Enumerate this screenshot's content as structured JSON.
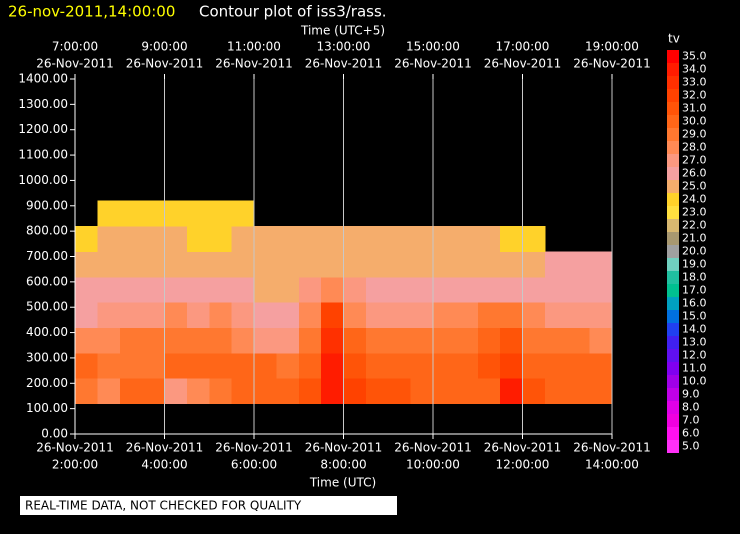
{
  "chart_data": {
    "type": "contour",
    "title": "26-nov-2011,14:00:00",
    "subtitle": "Contour plot of iss3/rass.",
    "x2label": "Time (UTC+5)",
    "xlabel": "Time (UTC)",
    "note": "REAL-TIME DATA, NOT CHECKED FOR QUALITY",
    "xlim": [
      2,
      14
    ],
    "ylim": [
      0,
      1400
    ],
    "grid": true,
    "xticks": [
      {
        "value": 2,
        "date": "26-Nov-2011",
        "time": "2:00:00"
      },
      {
        "value": 4,
        "date": "26-Nov-2011",
        "time": "4:00:00"
      },
      {
        "value": 6,
        "date": "26-Nov-2011",
        "time": "6:00:00"
      },
      {
        "value": 8,
        "date": "26-Nov-2011",
        "time": "8:00:00"
      },
      {
        "value": 10,
        "date": "26-Nov-2011",
        "time": "10:00:00"
      },
      {
        "value": 12,
        "date": "26-Nov-2011",
        "time": "12:00:00"
      },
      {
        "value": 14,
        "date": "26-Nov-2011",
        "time": "14:00:00"
      }
    ],
    "x2ticks": [
      {
        "value": 2,
        "time": "7:00:00",
        "date": "26-Nov-2011"
      },
      {
        "value": 4,
        "time": "9:00:00",
        "date": "26-Nov-2011"
      },
      {
        "value": 6,
        "time": "11:00:00",
        "date": "26-Nov-2011"
      },
      {
        "value": 8,
        "time": "13:00:00",
        "date": "26-Nov-2011"
      },
      {
        "value": 10,
        "time": "15:00:00",
        "date": "26-Nov-2011"
      },
      {
        "value": 12,
        "time": "17:00:00",
        "date": "26-Nov-2011"
      },
      {
        "value": 14,
        "time": "19:00:00",
        "date": "26-Nov-2011"
      }
    ],
    "yticks": [
      {
        "value": 0,
        "label": "0.00"
      },
      {
        "value": 100,
        "label": "100.00"
      },
      {
        "value": 200,
        "label": "200.00"
      },
      {
        "value": 300,
        "label": "300.00"
      },
      {
        "value": 400,
        "label": "400.00"
      },
      {
        "value": 500,
        "label": "500.00"
      },
      {
        "value": 600,
        "label": "600.00"
      },
      {
        "value": 700,
        "label": "700.00"
      },
      {
        "value": 800,
        "label": "800.00"
      },
      {
        "value": 900,
        "label": "900.00"
      },
      {
        "value": 1000,
        "label": "1000.00"
      },
      {
        "value": 1100,
        "label": "1100.00"
      },
      {
        "value": 1200,
        "label": "1200.00"
      },
      {
        "value": 1300,
        "label": "1300.00"
      },
      {
        "value": 1400,
        "label": "1400.00"
      }
    ],
    "x": [
      2.25,
      2.75,
      3.25,
      3.75,
      4.25,
      4.75,
      5.25,
      5.75,
      6.25,
      6.75,
      7.25,
      7.75,
      8.25,
      8.75,
      9.25,
      9.75,
      10.25,
      10.75,
      11.25,
      11.75,
      12.25,
      12.75,
      13.25,
      13.75
    ],
    "y": [
      170,
      270,
      370,
      470,
      570,
      670,
      770,
      870
    ],
    "values": [
      [
        29,
        28,
        30,
        30,
        27,
        28,
        29,
        30,
        30,
        30,
        31,
        34,
        32,
        31,
        31,
        30,
        30,
        30,
        30,
        34,
        31,
        30,
        30,
        30
      ],
      [
        30,
        29,
        29,
        29,
        30,
        30,
        30,
        30,
        30,
        29,
        30,
        34,
        31,
        30,
        30,
        30,
        30,
        30,
        31,
        32,
        30,
        30,
        30,
        30
      ],
      [
        28,
        28,
        29,
        29,
        29,
        29,
        29,
        28,
        27,
        27,
        29,
        33,
        30,
        29,
        29,
        29,
        29,
        29,
        30,
        31,
        29,
        29,
        29,
        28
      ],
      [
        26,
        27,
        27,
        27,
        28,
        27,
        28,
        27,
        26,
        26,
        28,
        32,
        28,
        27,
        27,
        27,
        28,
        28,
        29,
        29,
        28,
        27,
        27,
        27
      ],
      [
        26,
        26,
        26,
        26,
        26,
        26,
        26,
        26,
        25,
        25,
        27,
        28,
        27,
        26,
        26,
        26,
        26,
        26,
        26,
        26,
        26,
        26,
        26,
        26
      ],
      [
        25,
        25,
        25,
        25,
        25,
        25,
        25,
        25,
        25,
        25,
        25,
        25,
        25,
        25,
        25,
        25,
        25,
        25,
        25,
        25,
        25,
        26,
        26,
        26
      ],
      [
        24,
        25,
        25,
        25,
        25,
        24,
        24,
        25,
        25,
        25,
        25,
        25,
        25,
        25,
        25,
        25,
        25,
        25,
        25,
        24,
        24,
        null,
        null,
        null
      ],
      [
        null,
        24,
        24,
        24,
        24,
        24,
        24,
        24,
        null,
        null,
        null,
        null,
        null,
        null,
        null,
        null,
        null,
        null,
        null,
        null,
        null,
        null,
        null,
        null
      ]
    ],
    "colorbar": {
      "title": "tv",
      "levels": [
        {
          "value": 35,
          "label": "35.0"
        },
        {
          "value": 34,
          "label": "34.0"
        },
        {
          "value": 33,
          "label": "33.0"
        },
        {
          "value": 32,
          "label": "32.0"
        },
        {
          "value": 31,
          "label": "31.0"
        },
        {
          "value": 30,
          "label": "30.0"
        },
        {
          "value": 29,
          "label": "29.0"
        },
        {
          "value": 28,
          "label": "28.0"
        },
        {
          "value": 27,
          "label": "27.0"
        },
        {
          "value": 26,
          "label": "26.0"
        },
        {
          "value": 25,
          "label": "25.0"
        },
        {
          "value": 24,
          "label": "24.0"
        },
        {
          "value": 23,
          "label": "23.0"
        },
        {
          "value": 22,
          "label": "22.0"
        },
        {
          "value": 21,
          "label": "21.0"
        },
        {
          "value": 20,
          "label": "20.0"
        },
        {
          "value": 19,
          "label": "19.0"
        },
        {
          "value": 18,
          "label": "18.0"
        },
        {
          "value": 17,
          "label": "17.0"
        },
        {
          "value": 16,
          "label": "16.0"
        },
        {
          "value": 15,
          "label": "15.0"
        },
        {
          "value": 14,
          "label": "14.0"
        },
        {
          "value": 13,
          "label": "13.0"
        },
        {
          "value": 12,
          "label": "12.0"
        },
        {
          "value": 11,
          "label": "11.0"
        },
        {
          "value": 10,
          "label": "10.0"
        },
        {
          "value": 9,
          "label": "9.0"
        },
        {
          "value": 8,
          "label": "8.0"
        },
        {
          "value": 7,
          "label": "7.0"
        },
        {
          "value": 6,
          "label": "6.0"
        },
        {
          "value": 5,
          "label": "5.0"
        }
      ],
      "colors": [
        "#ff0000",
        "#ff1c00",
        "#ff3000",
        "#ff4200",
        "#ff5408",
        "#ff6618",
        "#ff7830",
        "#ff8a55",
        "#fb9880",
        "#f5a0a0",
        "#f5ad6c",
        "#ffd22a",
        "#ffe040",
        "#d8b870",
        "#a89870",
        "#a0a0a0",
        "#70d0c0",
        "#20c0a0",
        "#00c090",
        "#00a0c0",
        "#0070e0",
        "#2040f0",
        "#4020f0",
        "#6010f0",
        "#8000f0",
        "#a000e8",
        "#c000e8",
        "#e000e8",
        "#f000e0",
        "#ff10f0",
        "#ff30f8"
      ]
    }
  }
}
